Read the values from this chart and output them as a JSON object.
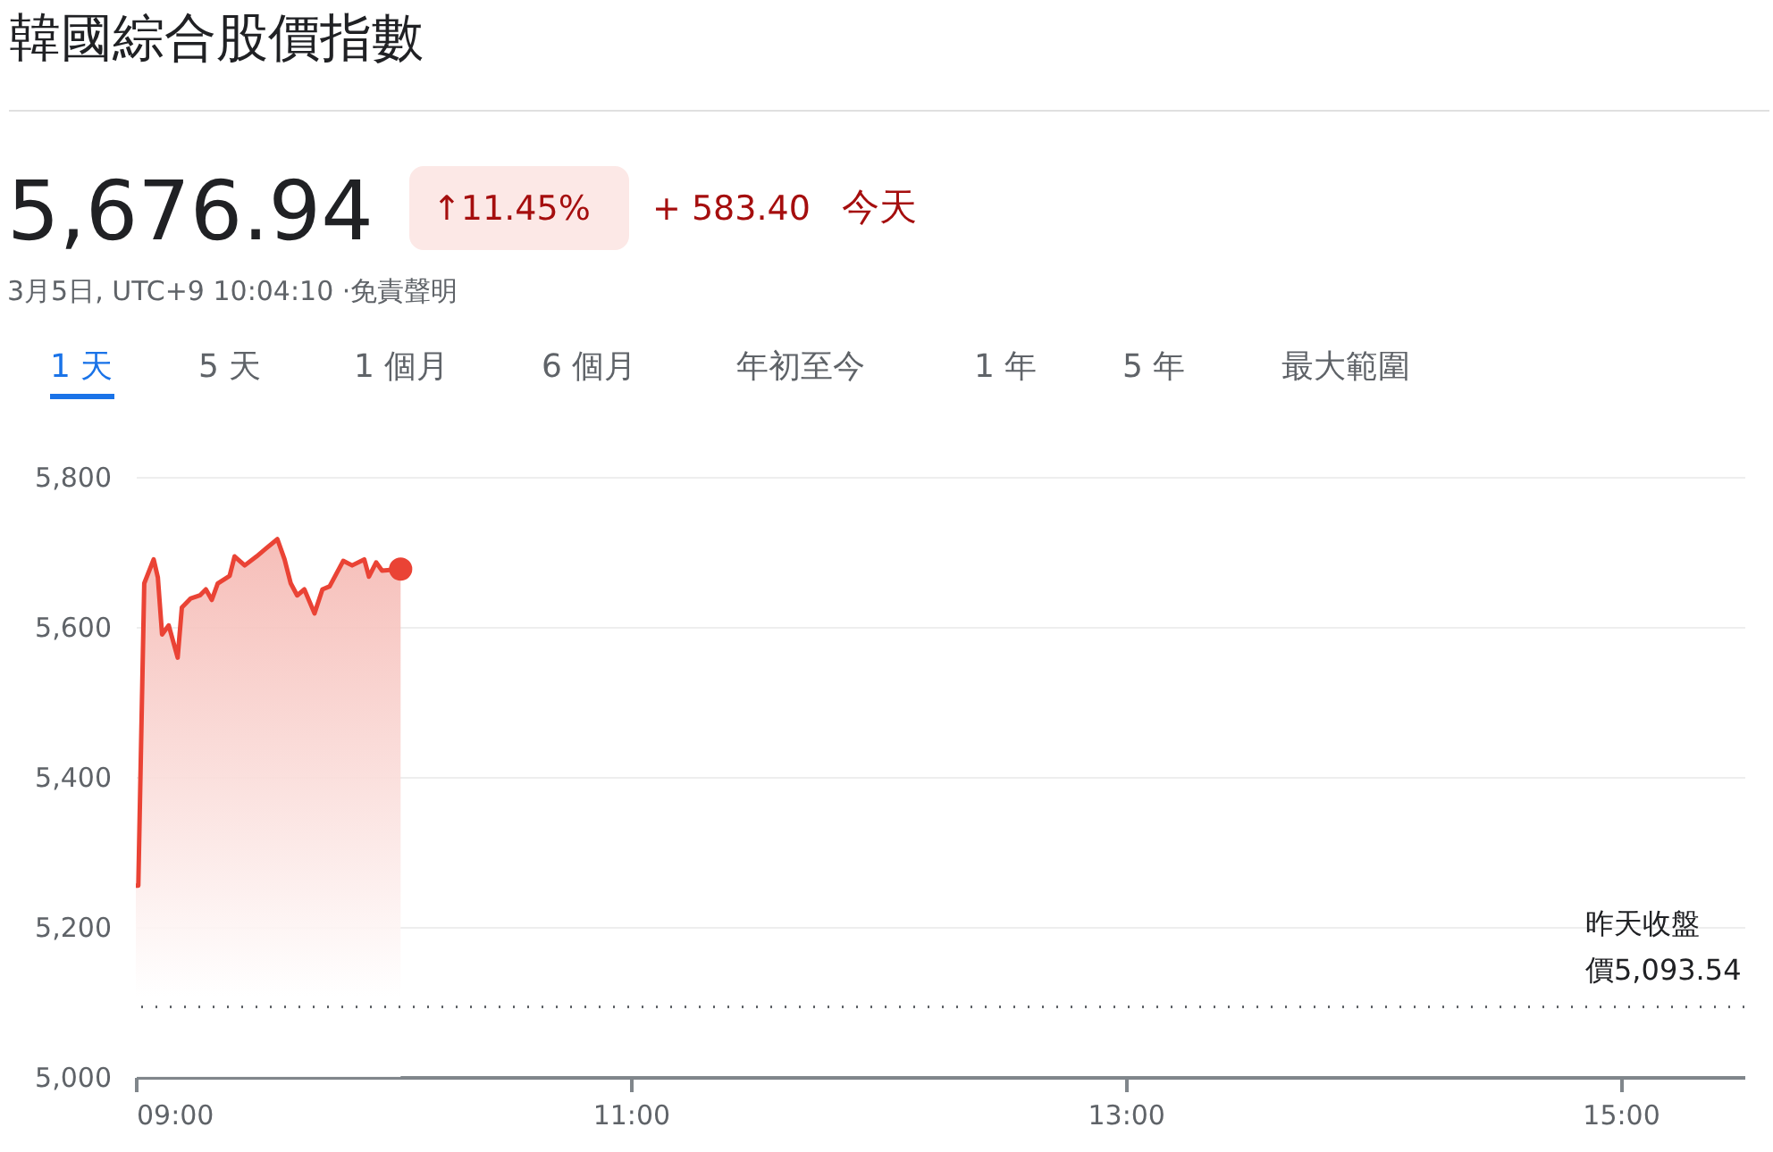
{
  "chart_data": {
    "type": "area",
    "title": "韓國綜合股價指數",
    "annotations": [
      "5,676.94",
      "↑11.45%",
      "+ 583.40",
      "今天",
      "3月5日, UTC+9 10:04:10 ·免責聲明",
      "1 天",
      "5 天",
      "1 個月",
      "6 個月",
      "年初至今",
      "1 年",
      "5 年",
      "最大範圍"
    ],
    "x": [
      9.0,
      9.01,
      9.034,
      9.072,
      9.089,
      9.106,
      9.133,
      9.169,
      9.186,
      9.222,
      9.259,
      9.283,
      9.307,
      9.331,
      9.379,
      9.399,
      9.44,
      9.488,
      9.524,
      9.572,
      9.601,
      9.626,
      9.652,
      9.681,
      9.722,
      9.754,
      9.783,
      9.838,
      9.874,
      9.923,
      9.942,
      9.971,
      9.995,
      10.07
    ],
    "series": [
      {
        "color": "#ea4335",
        "values": [
          5255,
          5255,
          5658,
          5690,
          5666,
          5590,
          5602,
          5559,
          5626,
          5638,
          5642,
          5650,
          5636,
          5658,
          5668,
          5694,
          5682,
          5694,
          5704,
          5717,
          5690,
          5658,
          5642,
          5650,
          5618,
          5650,
          5654,
          5688,
          5682,
          5690,
          5667,
          5686,
          5675,
          5677
        ]
      }
    ],
    "xlim": [
      9,
      15.5
    ],
    "xticks": [
      {
        "value": 9,
        "label": "09:00"
      },
      {
        "value": 11,
        "label": "11:00"
      },
      {
        "value": 13,
        "label": "13:00"
      },
      {
        "value": 15,
        "label": "15:00"
      }
    ],
    "ylim": [
      5000,
      5800
    ],
    "yticks": [
      {
        "value": 5000,
        "label": "5,000"
      },
      {
        "value": 5200,
        "label": "5,200"
      },
      {
        "value": 5400,
        "label": "5,400"
      },
      {
        "value": 5600,
        "label": "5,600"
      },
      {
        "value": 5800,
        "label": "5,800"
      }
    ],
    "grid": "y",
    "ref_lines": [
      {
        "axis": "y",
        "value": 5093.54,
        "label": "昨天收盤價5,093.54",
        "color": "#5f6368",
        "line_style": "dotted"
      }
    ]
  }
}
